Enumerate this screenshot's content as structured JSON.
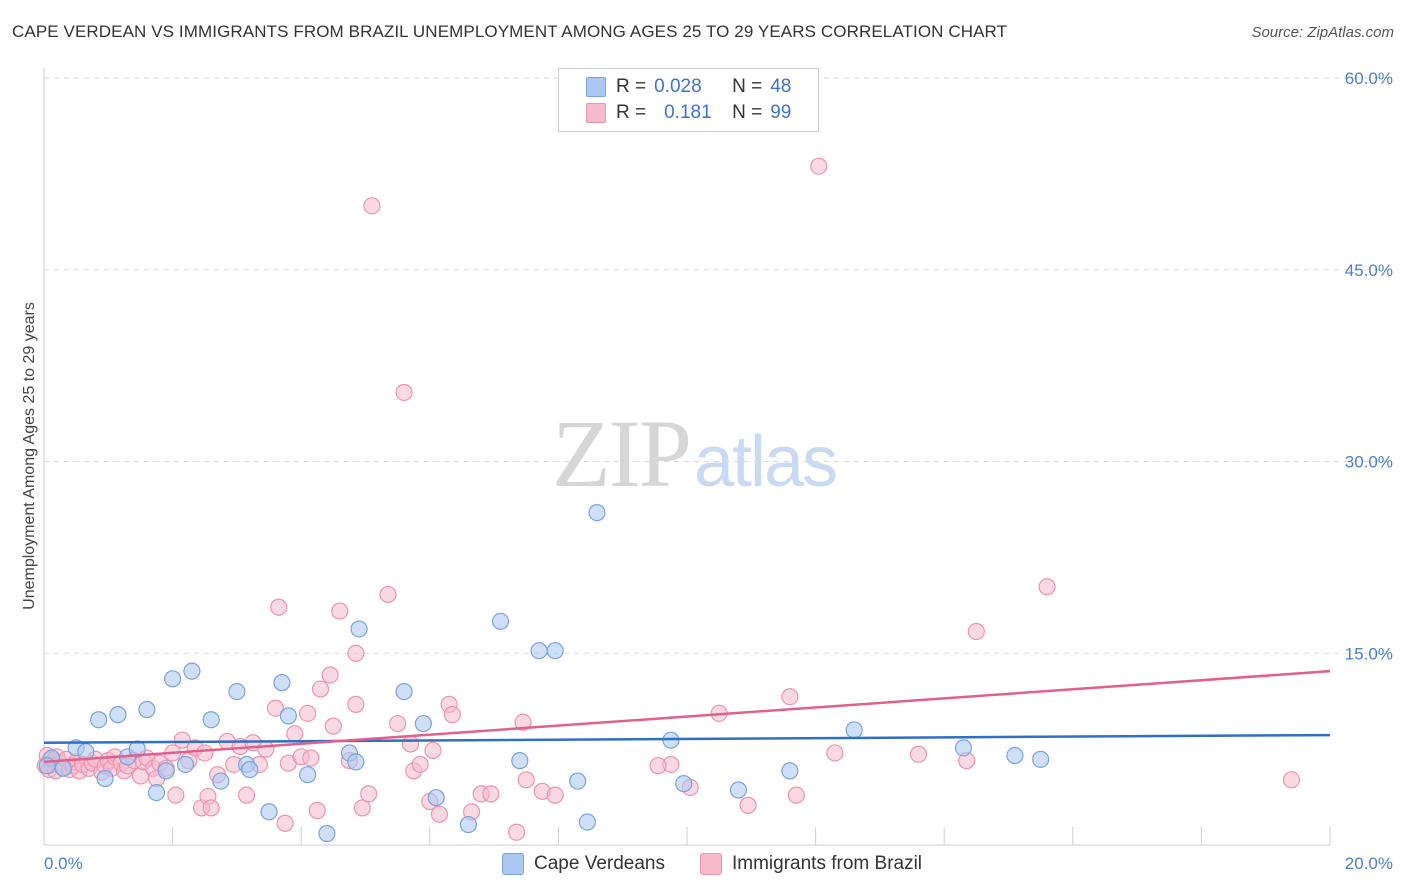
{
  "header": {
    "title": "CAPE VERDEAN VS IMMIGRANTS FROM BRAZIL UNEMPLOYMENT AMONG AGES 25 TO 29 YEARS CORRELATION CHART",
    "source": "Source: ZipAtlas.com"
  },
  "watermark": {
    "zip": "ZIP",
    "atlas": "atlas"
  },
  "legend": {
    "rows": [
      {
        "r_label": "R =",
        "r_value": "0.028",
        "n_label": "N =",
        "n_value": "48"
      },
      {
        "r_label": "R =",
        "r_value": "0.181",
        "n_label": "N =",
        "n_value": "99"
      }
    ]
  },
  "bottom_legend": {
    "blue": "Cape Verdeans",
    "pink": "Immigrants from Brazil"
  },
  "colors": {
    "blue_fill": "#adc9f2",
    "blue_stroke": "#7aa3e0",
    "blue_line": "#2f6fc6",
    "pink_fill": "#f7b9cc",
    "pink_stroke": "#ec94b0",
    "pink_line": "#e1608c",
    "tick_text": "#4a7fd0",
    "grid": "#d9d9d9"
  },
  "chart_data": {
    "type": "scatter",
    "title": "CAPE VERDEAN VS IMMIGRANTS FROM BRAZIL UNEMPLOYMENT AMONG AGES 25 TO 29 YEARS CORRELATION CHART",
    "xlabel": "",
    "ylabel": "Unemployment Among Ages 25 to 29 years",
    "xlim": [
      0,
      20
    ],
    "ylim": [
      0,
      60
    ],
    "x_tick_labels": [
      "0.0%",
      "20.0%"
    ],
    "y_tick_values": [
      15,
      30,
      45,
      60
    ],
    "y_tick_labels": [
      "15.0%",
      "30.0%",
      "45.0%",
      "60.0%"
    ],
    "grid": true,
    "series": [
      {
        "name": "Cape Verdeans",
        "trend": {
          "x": [
            0,
            20
          ],
          "y": [
            8.0,
            8.6
          ]
        },
        "points": [
          [
            0.12,
            6.8
          ],
          [
            0.3,
            6.0
          ],
          [
            0.5,
            7.6
          ],
          [
            0.65,
            7.3
          ],
          [
            0.85,
            9.8
          ],
          [
            0.95,
            5.2
          ],
          [
            1.15,
            10.2
          ],
          [
            1.3,
            6.9
          ],
          [
            1.45,
            7.5
          ],
          [
            1.6,
            10.6
          ],
          [
            1.75,
            4.1
          ],
          [
            1.9,
            5.8
          ],
          [
            2.0,
            13.0
          ],
          [
            2.2,
            6.3
          ],
          [
            2.3,
            13.6
          ],
          [
            2.6,
            9.8
          ],
          [
            2.75,
            5.0
          ],
          [
            3.0,
            12.0
          ],
          [
            3.15,
            6.3
          ],
          [
            3.2,
            5.9
          ],
          [
            3.5,
            2.6
          ],
          [
            3.7,
            12.7
          ],
          [
            3.8,
            10.1
          ],
          [
            4.1,
            5.5
          ],
          [
            4.4,
            0.9
          ],
          [
            4.75,
            7.2
          ],
          [
            4.85,
            6.5
          ],
          [
            4.9,
            16.9
          ],
          [
            5.6,
            12.0
          ],
          [
            5.9,
            9.5
          ],
          [
            6.1,
            3.7
          ],
          [
            6.6,
            1.6
          ],
          [
            7.1,
            17.5
          ],
          [
            7.4,
            6.6
          ],
          [
            7.7,
            15.2
          ],
          [
            7.95,
            15.2
          ],
          [
            8.3,
            5.0
          ],
          [
            8.45,
            1.8
          ],
          [
            8.6,
            26.0
          ],
          [
            9.75,
            8.2
          ],
          [
            9.95,
            4.8
          ],
          [
            10.8,
            4.3
          ],
          [
            11.6,
            5.8
          ],
          [
            12.6,
            9.0
          ],
          [
            14.3,
            7.6
          ],
          [
            15.1,
            7.0
          ],
          [
            15.5,
            6.7
          ],
          [
            0.05,
            6.2
          ]
        ]
      },
      {
        "name": "Immigrants from Brazil",
        "trend": {
          "x": [
            0,
            20
          ],
          "y": [
            6.5,
            13.6
          ]
        },
        "points": [
          [
            0.02,
            6.2
          ],
          [
            0.05,
            7.0
          ],
          [
            0.08,
            5.9
          ],
          [
            0.1,
            6.7
          ],
          [
            0.12,
            6.3
          ],
          [
            0.15,
            6.6
          ],
          [
            0.18,
            5.8
          ],
          [
            0.2,
            6.9
          ],
          [
            0.25,
            6.4
          ],
          [
            0.3,
            6.1
          ],
          [
            0.35,
            6.7
          ],
          [
            0.4,
            5.9
          ],
          [
            0.45,
            6.2
          ],
          [
            0.5,
            6.5
          ],
          [
            0.55,
            5.8
          ],
          [
            0.6,
            6.3
          ],
          [
            0.7,
            6.0
          ],
          [
            0.75,
            6.4
          ],
          [
            0.8,
            6.7
          ],
          [
            0.9,
            5.7
          ],
          [
            0.95,
            6.2
          ],
          [
            1.0,
            6.6
          ],
          [
            1.05,
            6.0
          ],
          [
            1.1,
            6.9
          ],
          [
            1.2,
            6.4
          ],
          [
            1.25,
            5.8
          ],
          [
            1.3,
            6.2
          ],
          [
            1.4,
            6.6
          ],
          [
            1.5,
            5.4
          ],
          [
            1.55,
            6.5
          ],
          [
            1.6,
            6.8
          ],
          [
            1.7,
            6.0
          ],
          [
            1.75,
            5.2
          ],
          [
            1.8,
            6.4
          ],
          [
            1.9,
            6.0
          ],
          [
            2.0,
            7.2
          ],
          [
            2.05,
            3.9
          ],
          [
            2.15,
            8.2
          ],
          [
            2.25,
            6.6
          ],
          [
            2.35,
            7.6
          ],
          [
            2.45,
            2.9
          ],
          [
            2.5,
            7.2
          ],
          [
            2.55,
            3.8
          ],
          [
            2.6,
            2.9
          ],
          [
            2.7,
            5.5
          ],
          [
            2.85,
            8.1
          ],
          [
            2.95,
            6.3
          ],
          [
            3.05,
            7.7
          ],
          [
            3.15,
            3.9
          ],
          [
            3.25,
            8.0
          ],
          [
            3.35,
            6.3
          ],
          [
            3.45,
            7.5
          ],
          [
            3.6,
            10.7
          ],
          [
            3.65,
            18.6
          ],
          [
            3.75,
            1.7
          ],
          [
            3.8,
            6.4
          ],
          [
            3.9,
            8.7
          ],
          [
            4.0,
            6.9
          ],
          [
            4.1,
            10.3
          ],
          [
            4.15,
            6.8
          ],
          [
            4.25,
            2.7
          ],
          [
            4.3,
            12.2
          ],
          [
            4.45,
            13.3
          ],
          [
            4.5,
            9.3
          ],
          [
            4.6,
            18.3
          ],
          [
            4.75,
            6.6
          ],
          [
            4.85,
            11.0
          ],
          [
            4.85,
            15.0
          ],
          [
            4.95,
            2.9
          ],
          [
            5.05,
            4.0
          ],
          [
            5.1,
            50.0
          ],
          [
            5.35,
            19.6
          ],
          [
            5.5,
            9.5
          ],
          [
            5.6,
            35.4
          ],
          [
            5.7,
            7.9
          ],
          [
            5.75,
            5.8
          ],
          [
            5.85,
            6.3
          ],
          [
            6.0,
            3.4
          ],
          [
            6.05,
            7.4
          ],
          [
            6.15,
            2.4
          ],
          [
            6.3,
            11.0
          ],
          [
            6.35,
            10.2
          ],
          [
            6.65,
            2.6
          ],
          [
            6.8,
            4.0
          ],
          [
            6.95,
            4.0
          ],
          [
            7.35,
            1.0
          ],
          [
            7.45,
            9.6
          ],
          [
            7.5,
            5.1
          ],
          [
            7.75,
            4.2
          ],
          [
            7.95,
            3.9
          ],
          [
            9.75,
            6.3
          ],
          [
            10.05,
            4.5
          ],
          [
            10.5,
            10.3
          ],
          [
            10.95,
            3.1
          ],
          [
            11.6,
            11.6
          ],
          [
            11.7,
            3.9
          ],
          [
            12.3,
            7.2
          ],
          [
            14.35,
            6.6
          ],
          [
            19.4,
            5.1
          ]
        ]
      }
    ],
    "extra_pink_points": [
      [
        12.05,
        53.1
      ],
      [
        15.6,
        20.2
      ],
      [
        14.5,
        16.7
      ],
      [
        9.55,
        6.2
      ],
      [
        13.6,
        7.1
      ]
    ]
  }
}
